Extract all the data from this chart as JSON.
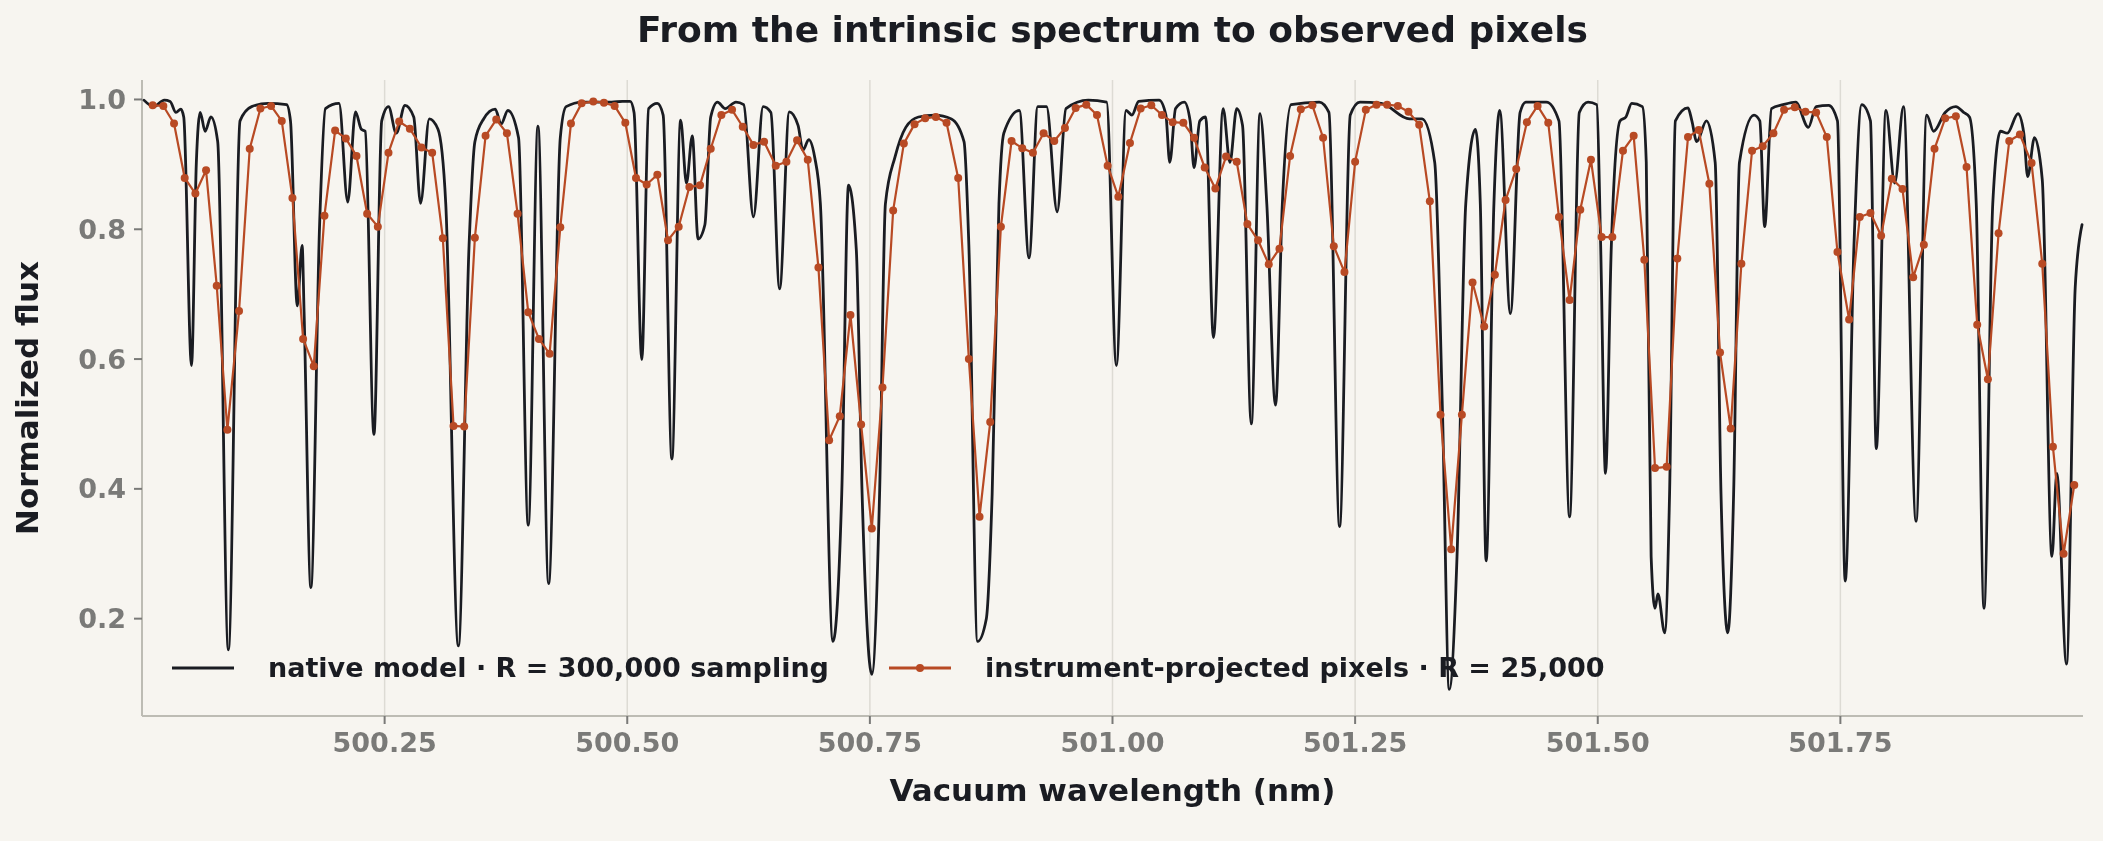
{
  "chart_data": {
    "type": "line",
    "title": "From the intrinsic spectrum to observed pixels",
    "xlabel": "Vacuum wavelength (nm)",
    "ylabel": "Normalized flux",
    "xlim": [
      500,
      502
    ],
    "ylim": [
      0.05,
      1.03
    ],
    "xticks": [
      500.25,
      {
        "value": 500.5,
        "label": "500.50"
      },
      500.75,
      {
        "value": 501,
        "label": "501.00"
      },
      501.25,
      {
        "value": 501.5,
        "label": "501.50"
      },
      501.75
    ],
    "yticks": [
      0.2,
      0.4,
      0.6,
      0.8,
      {
        "value": 1,
        "label": "1.0"
      }
    ],
    "grid": "x",
    "legend": "bottom left",
    "series": [
      {
        "name": "native model · R = 300,000 sampling",
        "color": "#1a1c22",
        "marker": "none",
        "x": [
          500.002,
          500.012,
          500.023,
          500.029,
          500.035,
          500.04,
          500.043,
          500.051,
          500.056,
          500.06,
          500.065,
          500.071,
          500.078,
          500.089,
          500.101,
          500.113,
          500.13,
          500.149,
          500.153,
          500.16,
          500.165,
          500.167,
          500.174,
          500.183,
          500.189,
          500.203,
          500.212,
          500.22,
          500.226,
          500.23,
          500.239,
          500.247,
          500.254,
          500.262,
          500.271,
          500.28,
          500.287,
          500.296,
          500.305,
          500.313,
          500.326,
          500.337,
          500.343,
          500.352,
          500.364,
          500.37,
          500.377,
          500.388,
          500.398,
          500.408,
          500.419,
          500.431,
          500.437,
          500.454,
          500.484,
          500.495,
          500.503,
          500.507,
          500.515,
          500.522,
          500.531,
          500.537,
          500.546,
          500.555,
          500.561,
          500.567,
          500.573,
          500.58,
          500.586,
          500.593,
          500.601,
          500.612,
          500.62,
          500.63,
          500.64,
          500.648,
          500.657,
          500.667,
          500.676,
          500.681,
          500.687,
          500.693,
          500.699,
          500.712,
          500.721,
          500.728,
          500.736,
          500.742,
          500.752,
          500.76,
          500.766,
          500.776,
          500.787,
          500.8,
          500.817,
          500.834,
          500.847,
          500.852,
          500.861,
          500.87,
          500.876,
          500.883,
          500.888,
          500.904,
          500.914,
          500.923,
          500.932,
          500.943,
          500.952,
          500.975,
          500.994,
          501.004,
          501.014,
          501.02,
          501.027,
          501.048,
          501.055,
          501.059,
          501.065,
          501.074,
          501.08,
          501.084,
          501.09,
          501.096,
          501.104,
          501.114,
          501.121,
          501.128,
          501.134,
          501.143,
          501.152,
          501.159,
          501.168,
          501.175,
          501.184,
          501.213,
          501.223,
          501.234,
          501.245,
          501.255,
          501.277,
          501.306,
          501.319,
          501.332,
          501.34,
          501.347,
          501.355,
          501.364,
          501.374,
          501.379,
          501.385,
          501.393,
          501.399,
          501.41,
          501.42,
          501.426,
          501.447,
          501.46,
          501.471,
          501.481,
          501.49,
          501.499,
          501.503,
          501.508,
          501.514,
          501.523,
          501.529,
          501.535,
          501.546,
          501.55,
          501.555,
          501.559,
          501.562,
          501.569,
          501.574,
          501.58,
          501.593,
          501.597,
          501.602,
          501.612,
          501.621,
          501.627,
          501.634,
          501.64,
          501.646,
          501.661,
          501.667,
          501.672,
          501.679,
          501.691,
          501.704,
          501.717,
          501.725,
          501.738,
          501.747,
          501.755,
          501.764,
          501.772,
          501.781,
          501.787,
          501.797,
          501.806,
          501.815,
          501.828,
          501.839,
          501.846,
          501.858,
          501.869,
          501.877,
          501.883,
          501.89,
          501.898,
          501.907,
          501.915,
          501.922,
          501.933,
          501.939,
          501.943,
          501.95,
          501.958,
          501.968,
          501.973,
          501.983,
          501.992,
          501.999
        ],
        "values": [
          0.999,
          0.989,
          0.999,
          0.997,
          0.98,
          0.985,
          0.973,
          0.59,
          0.903,
          0.98,
          0.951,
          0.973,
          0.935,
          0.152,
          0.967,
          0.989,
          0.994,
          0.992,
          0.967,
          0.682,
          0.775,
          0.673,
          0.248,
          0.807,
          0.986,
          0.994,
          0.842,
          0.981,
          0.954,
          0.951,
          0.484,
          0.967,
          0.989,
          0.948,
          0.991,
          0.973,
          0.84,
          0.97,
          0.954,
          0.839,
          0.158,
          0.775,
          0.935,
          0.97,
          0.985,
          0.962,
          0.983,
          0.941,
          0.344,
          0.959,
          0.254,
          0.941,
          0.989,
          0.996,
          0.996,
          0.997,
          0.997,
          0.98,
          0.599,
          0.986,
          0.994,
          0.976,
          0.446,
          0.968,
          0.871,
          0.944,
          0.785,
          0.807,
          0.973,
          0.996,
          0.986,
          0.996,
          0.992,
          0.819,
          0.989,
          0.98,
          0.708,
          0.981,
          0.96,
          0.922,
          0.938,
          0.912,
          0.839,
          0.165,
          0.392,
          0.868,
          0.769,
          0.392,
          0.114,
          0.392,
          0.839,
          0.912,
          0.957,
          0.973,
          0.976,
          0.97,
          0.935,
          0.775,
          0.165,
          0.2,
          0.392,
          0.839,
          0.948,
          0.983,
          0.756,
          0.989,
          0.989,
          0.827,
          0.986,
          0.999,
          0.996,
          0.59,
          0.983,
          0.976,
          0.997,
          0.999,
          0.976,
          0.903,
          0.986,
          0.996,
          0.967,
          0.895,
          0.967,
          0.973,
          0.633,
          0.986,
          0.903,
          0.986,
          0.96,
          0.5,
          0.978,
          0.839,
          0.529,
          0.839,
          0.992,
          0.996,
          0.98,
          0.342,
          0.976,
          0.996,
          0.994,
          0.97,
          0.97,
          0.903,
          0.519,
          0.091,
          0.296,
          0.839,
          0.954,
          0.839,
          0.289,
          0.839,
          0.983,
          0.67,
          0.98,
          0.996,
          0.996,
          0.967,
          0.357,
          0.98,
          0.996,
          0.992,
          0.775,
          0.424,
          0.775,
          0.967,
          0.973,
          0.994,
          0.989,
          0.903,
          0.296,
          0.216,
          0.238,
          0.178,
          0.392,
          0.967,
          0.987,
          0.967,
          0.935,
          0.967,
          0.903,
          0.392,
          0.178,
          0.392,
          0.903,
          0.976,
          0.967,
          0.804,
          0.986,
          0.992,
          0.996,
          0.957,
          0.989,
          0.991,
          0.967,
          0.258,
          0.775,
          0.992,
          0.967,
          0.462,
          0.983,
          0.871,
          0.989,
          0.35,
          0.976,
          0.951,
          0.98,
          0.989,
          0.98,
          0.973,
          0.839,
          0.216,
          0.839,
          0.951,
          0.948,
          0.978,
          0.948,
          0.881,
          0.941,
          0.877,
          0.296,
          0.424,
          0.13,
          0.711,
          0.807
        ]
      },
      {
        "name": "instrument-projected pixels · R = 25,000",
        "color": "#b84a24",
        "marker": "circle",
        "x": [
          500.011,
          500.022,
          500.033,
          500.044,
          500.055,
          500.066,
          500.077,
          500.088,
          500.1,
          500.111,
          500.122,
          500.133,
          500.144,
          500.155,
          500.166,
          500.177,
          500.188,
          500.199,
          500.21,
          500.221,
          500.232,
          500.243,
          500.254,
          500.265,
          500.276,
          500.288,
          500.299,
          500.31,
          500.321,
          500.332,
          500.343,
          500.354,
          500.365,
          500.376,
          500.387,
          500.398,
          500.409,
          500.42,
          500.431,
          500.442,
          500.453,
          500.465,
          500.476,
          500.487,
          500.498,
          500.509,
          500.52,
          500.531,
          500.542,
          500.553,
          500.564,
          500.575,
          500.586,
          500.597,
          500.608,
          500.619,
          500.63,
          500.641,
          500.653,
          500.664,
          500.675,
          500.686,
          500.697,
          500.708,
          500.719,
          500.73,
          500.741,
          500.752,
          500.763,
          500.774,
          500.785,
          500.796,
          500.807,
          500.818,
          500.829,
          500.841,
          500.852,
          500.863,
          500.874,
          500.885,
          500.896,
          500.907,
          500.918,
          500.929,
          500.94,
          500.951,
          500.962,
          500.973,
          500.984,
          500.995,
          501.006,
          501.018,
          501.029,
          501.04,
          501.051,
          501.062,
          501.073,
          501.084,
          501.095,
          501.106,
          501.117,
          501.128,
          501.139,
          501.15,
          501.161,
          501.172,
          501.183,
          501.194,
          501.206,
          501.217,
          501.228,
          501.239,
          501.25,
          501.261,
          501.272,
          501.283,
          501.294,
          501.305,
          501.316,
          501.327,
          501.338,
          501.349,
          501.36,
          501.371,
          501.383,
          501.394,
          501.405,
          501.416,
          501.427,
          501.438,
          501.449,
          501.46,
          501.471,
          501.482,
          501.493,
          501.504,
          501.515,
          501.526,
          501.537,
          501.548,
          501.559,
          501.571,
          501.582,
          501.593,
          501.604,
          501.615,
          501.626,
          501.637,
          501.648,
          501.659,
          501.67,
          501.681,
          501.692,
          501.703,
          501.714,
          501.725,
          501.736,
          501.747,
          501.759,
          501.77,
          501.781,
          501.792,
          501.803,
          501.814,
          501.825,
          501.836,
          501.847,
          501.858,
          501.869,
          501.88,
          501.891,
          501.902,
          501.913,
          501.924,
          501.935,
          501.947,
          501.958,
          501.969,
          501.98,
          501.991
        ],
        "values": [
          0.991,
          0.99,
          0.963,
          0.879,
          0.855,
          0.891,
          0.713,
          0.491,
          0.674,
          0.924,
          0.986,
          0.99,
          0.967,
          0.848,
          0.631,
          0.589,
          0.821,
          0.952,
          0.94,
          0.913,
          0.824,
          0.804,
          0.918,
          0.966,
          0.955,
          0.926,
          0.918,
          0.786,
          0.497,
          0.496,
          0.787,
          0.944,
          0.969,
          0.948,
          0.824,
          0.672,
          0.631,
          0.608,
          0.803,
          0.963,
          0.994,
          0.997,
          0.995,
          0.99,
          0.964,
          0.879,
          0.869,
          0.884,
          0.783,
          0.804,
          0.865,
          0.868,
          0.924,
          0.976,
          0.984,
          0.958,
          0.93,
          0.935,
          0.898,
          0.904,
          0.937,
          0.907,
          0.741,
          0.475,
          0.512,
          0.668,
          0.499,
          0.339,
          0.556,
          0.829,
          0.932,
          0.962,
          0.971,
          0.973,
          0.964,
          0.879,
          0.6,
          0.357,
          0.503,
          0.804,
          0.936,
          0.925,
          0.918,
          0.948,
          0.936,
          0.956,
          0.987,
          0.992,
          0.976,
          0.898,
          0.85,
          0.933,
          0.986,
          0.991,
          0.976,
          0.965,
          0.964,
          0.941,
          0.895,
          0.863,
          0.912,
          0.904,
          0.808,
          0.783,
          0.746,
          0.77,
          0.913,
          0.985,
          0.991,
          0.941,
          0.774,
          0.734,
          0.904,
          0.984,
          0.992,
          0.992,
          0.99,
          0.981,
          0.961,
          0.843,
          0.514,
          0.307,
          0.514,
          0.718,
          0.65,
          0.73,
          0.845,
          0.893,
          0.965,
          0.99,
          0.964,
          0.819,
          0.691,
          0.83,
          0.907,
          0.788,
          0.788,
          0.921,
          0.944,
          0.753,
          0.432,
          0.434,
          0.755,
          0.942,
          0.953,
          0.87,
          0.61,
          0.493,
          0.747,
          0.921,
          0.928,
          0.948,
          0.984,
          0.988,
          0.981,
          0.98,
          0.942,
          0.765,
          0.661,
          0.819,
          0.825,
          0.79,
          0.878,
          0.862,
          0.726,
          0.776,
          0.924,
          0.971,
          0.974,
          0.896,
          0.653,
          0.569,
          0.794,
          0.936,
          0.946,
          0.902,
          0.747,
          0.465,
          0.3,
          0.406
        ]
      }
    ]
  }
}
